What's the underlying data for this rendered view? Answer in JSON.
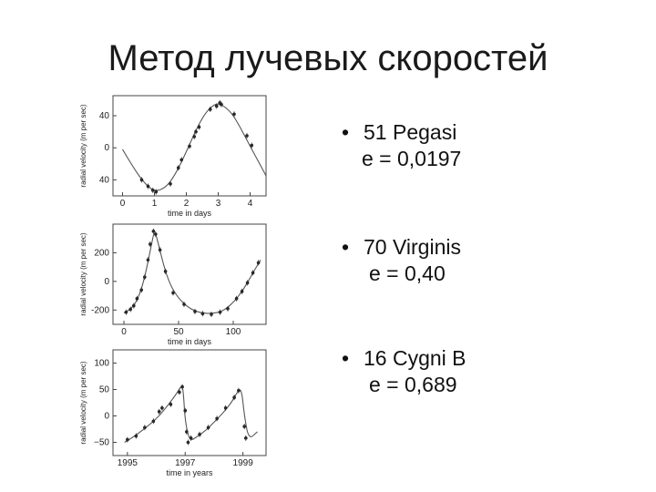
{
  "title": "Метод лучевых скоростей",
  "stars": [
    {
      "name": "51 Pegasi",
      "ecc": "e = 0,0197"
    },
    {
      "name": "70 Virginis",
      "ecc": "e = 0,40"
    },
    {
      "name": "16 Cygni B",
      "ecc": "e = 0,689"
    }
  ],
  "chart_data": [
    {
      "type": "scatter",
      "xlabel": "time in days",
      "ylabel": "radial velocity (m per sec)",
      "xlim": [
        -0.3,
        4.5
      ],
      "ylim": [
        -60,
        65
      ],
      "xticks": [
        "0",
        "1",
        "2",
        "3",
        "4"
      ],
      "xtick_values": [
        0,
        1,
        2,
        3,
        4
      ],
      "yticks": [
        "40",
        "0",
        "40"
      ],
      "ytick_values": [
        40,
        0,
        -40
      ],
      "series": [
        {
          "kind": "line",
          "x": [
            0.0,
            0.3,
            0.6,
            0.9,
            1.1,
            1.4,
            1.7,
            2.0,
            2.3,
            2.6,
            2.9,
            3.1,
            3.4,
            3.7,
            4.0,
            4.3,
            4.5
          ],
          "y": [
            -2,
            -22,
            -40,
            -52,
            -54,
            -48,
            -30,
            -5,
            22,
            44,
            55,
            54,
            45,
            25,
            2,
            -20,
            -35
          ]
        },
        {
          "kind": "points",
          "x": [
            0.6,
            0.8,
            0.95,
            1.05,
            1.5,
            1.75,
            1.85,
            2.1,
            2.25,
            2.3,
            2.4,
            2.75,
            2.95,
            3.05,
            3.1,
            3.5,
            3.9,
            4.05
          ],
          "y": [
            -40,
            -48,
            -53,
            -55,
            -45,
            -25,
            -15,
            2,
            14,
            20,
            26,
            48,
            52,
            56,
            54,
            42,
            15,
            3
          ]
        }
      ]
    },
    {
      "type": "scatter",
      "xlabel": "time in days",
      "ylabel": "radial velocity (m per sec)",
      "xlim": [
        -10,
        130
      ],
      "ylim": [
        -300,
        400
      ],
      "xticks": [
        "0",
        "50",
        "100"
      ],
      "xtick_values": [
        0,
        50,
        100
      ],
      "yticks": [
        "200",
        "0",
        "-200"
      ],
      "ytick_values": [
        200,
        0,
        -200
      ],
      "series": [
        {
          "kind": "line",
          "x": [
            0,
            5,
            10,
            15,
            20,
            25,
            28,
            32,
            36,
            42,
            50,
            60,
            70,
            80,
            90,
            100,
            110,
            118,
            125
          ],
          "y": [
            -220,
            -200,
            -160,
            -80,
            60,
            250,
            360,
            250,
            120,
            -20,
            -120,
            -190,
            -220,
            -225,
            -210,
            -150,
            -50,
            60,
            150
          ]
        },
        {
          "kind": "points",
          "x": [
            2,
            6,
            9,
            12,
            16,
            19,
            22,
            24,
            27,
            29,
            33,
            38,
            45,
            55,
            65,
            72,
            80,
            88,
            95,
            103,
            108,
            113,
            118,
            123
          ],
          "y": [
            -215,
            -195,
            -170,
            -120,
            -60,
            30,
            150,
            260,
            350,
            330,
            220,
            70,
            -80,
            -160,
            -210,
            -225,
            -230,
            -215,
            -190,
            -120,
            -70,
            -10,
            60,
            130
          ]
        }
      ]
    },
    {
      "type": "scatter",
      "xlabel": "time in years",
      "ylabel": "radial velocity (m per sec)",
      "xlim": [
        1994.5,
        1999.8
      ],
      "ylim": [
        -75,
        125
      ],
      "xticks": [
        "1995",
        "1997",
        "1999"
      ],
      "xtick_values": [
        1995,
        1997,
        1999
      ],
      "yticks": [
        "100",
        "50",
        "0",
        "−50"
      ],
      "ytick_values": [
        100,
        50,
        0,
        -50
      ],
      "series": [
        {
          "kind": "line",
          "x": [
            1994.9,
            1995.2,
            1995.5,
            1995.8,
            1996.1,
            1996.4,
            1996.7,
            1996.9,
            1996.95,
            1997.0,
            1997.15,
            1997.4,
            1997.7,
            1998.0,
            1998.3,
            1998.6,
            1998.8,
            1998.95,
            1999.05,
            1999.2,
            1999.5
          ],
          "y": [
            -50,
            -40,
            -28,
            -15,
            0,
            20,
            42,
            60,
            35,
            -10,
            -48,
            -40,
            -28,
            -12,
            5,
            25,
            45,
            52,
            0,
            -45,
            -30
          ]
        },
        {
          "kind": "points",
          "x": [
            1995.0,
            1995.3,
            1995.6,
            1995.9,
            1996.1,
            1996.2,
            1996.5,
            1996.8,
            1996.9,
            1997.0,
            1997.05,
            1997.1,
            1997.2,
            1997.5,
            1997.8,
            1998.1,
            1998.4,
            1998.7,
            1998.85,
            1999.05,
            1999.1
          ],
          "y": [
            -45,
            -38,
            -22,
            -10,
            8,
            15,
            22,
            45,
            55,
            10,
            -30,
            -50,
            -42,
            -35,
            -22,
            -5,
            15,
            35,
            48,
            -20,
            -42
          ]
        }
      ]
    }
  ]
}
